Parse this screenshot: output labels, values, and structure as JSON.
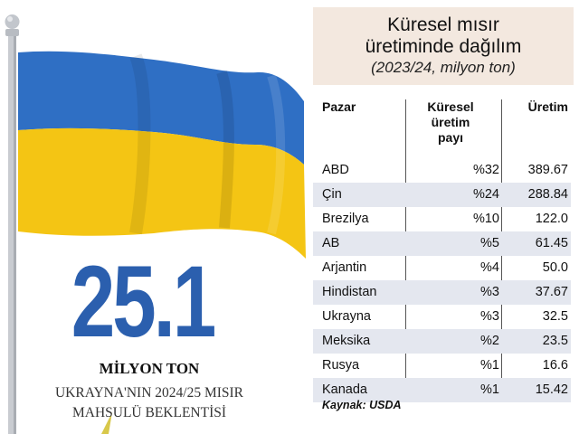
{
  "hero": {
    "number": "25.1",
    "unit": "MİLYON TON",
    "caption_line1": "UKRAYNA'NIN 2024/25 MISIR",
    "caption_line2": "MAHSULÜ BEKLENTİSİ"
  },
  "colors": {
    "flag_blue": "#2f6fc4",
    "flag_yellow": "#f4c514",
    "number_blue": "#2b5fae",
    "title_bg": "#f3e8df",
    "row_shade": "#e4e7ef"
  },
  "chart_data": {
    "type": "table",
    "title_line1": "Küresel mısır",
    "title_line2": "üretiminde dağılım",
    "subtitle": "(2023/24, milyon ton)",
    "columns": {
      "market": "Pazar",
      "share_l1": "Küresel",
      "share_l2": "üretim",
      "share_l3": "payı",
      "production": "Üretim"
    },
    "rows": [
      {
        "market": "ABD",
        "share": "%32",
        "production": "389.67"
      },
      {
        "market": "Çin",
        "share": "%24",
        "production": "288.84"
      },
      {
        "market": "Brezilya",
        "share": "%10",
        "production": "122.0"
      },
      {
        "market": "AB",
        "share": "%5",
        "production": "61.45"
      },
      {
        "market": "Arjantin",
        "share": "%4",
        "production": "50.0"
      },
      {
        "market": "Hindistan",
        "share": "%3",
        "production": "37.67"
      },
      {
        "market": "Ukrayna",
        "share": "%3",
        "production": "32.5"
      },
      {
        "market": "Meksika",
        "share": "%2",
        "production": "23.5"
      },
      {
        "market": "Rusya",
        "share": "%1",
        "production": "16.6"
      },
      {
        "market": "Kanada",
        "share": "%1",
        "production": "15.42"
      }
    ],
    "source": "Kaynak: USDA"
  }
}
